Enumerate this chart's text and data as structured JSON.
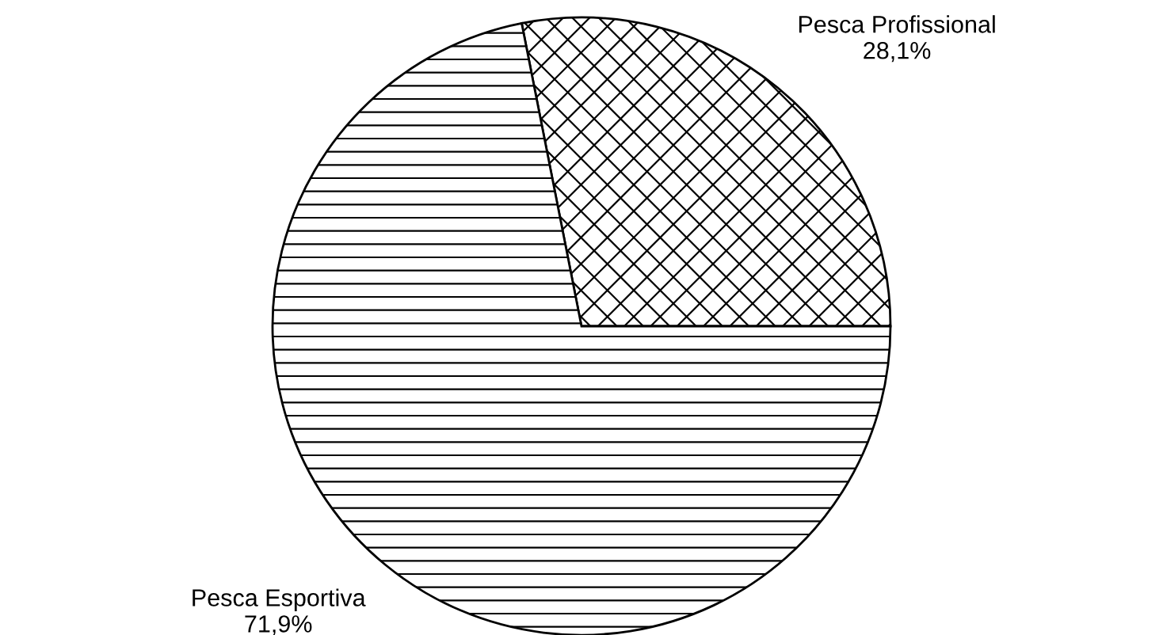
{
  "chart_data": {
    "type": "pie",
    "categories": [
      "Pesca Profissional",
      "Pesca Esportiva"
    ],
    "values": [
      28.1,
      71.9
    ],
    "value_labels": [
      "28,1%",
      "71,9%"
    ],
    "legend": false
  }
}
